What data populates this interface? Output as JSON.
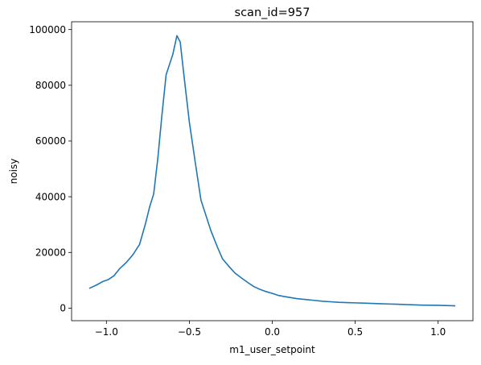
{
  "chart_data": {
    "type": "line",
    "title": "scan_id=957",
    "xlabel": "m1_user_setpoint",
    "ylabel": "noisy",
    "xlim": [
      -1.21,
      1.21
    ],
    "ylim": [
      -4500,
      102800
    ],
    "xticks": [
      -1.0,
      -0.5,
      0.0,
      0.5,
      1.0
    ],
    "xtick_labels": [
      "−1.0",
      "−0.5",
      "0.0",
      "0.5",
      "1.0"
    ],
    "yticks": [
      0,
      20000,
      40000,
      60000,
      80000,
      100000
    ],
    "ytick_labels": [
      "0",
      "20000",
      "40000",
      "60000",
      "80000",
      "100000"
    ],
    "grid": false,
    "line_color": "#1f77b4",
    "series": [
      {
        "name": "noisy",
        "x": [
          -1.1,
          -1.06,
          -1.02,
          -0.99,
          -0.955,
          -0.92,
          -0.88,
          -0.84,
          -0.8,
          -0.765,
          -0.74,
          -0.715,
          -0.69,
          -0.665,
          -0.64,
          -0.6,
          -0.575,
          -0.555,
          -0.53,
          -0.5,
          -0.465,
          -0.43,
          -0.405,
          -0.37,
          -0.33,
          -0.3,
          -0.26,
          -0.225,
          -0.185,
          -0.145,
          -0.11,
          -0.08,
          -0.04,
          0.0,
          0.035,
          0.07,
          0.11,
          0.15,
          0.2,
          0.25,
          0.3,
          0.35,
          0.4,
          0.45,
          0.5,
          0.55,
          0.6,
          0.65,
          0.7,
          0.75,
          0.8,
          0.85,
          0.9,
          0.95,
          1.0,
          1.05,
          1.1
        ],
        "values": [
          7200,
          8300,
          9600,
          10200,
          11600,
          14200,
          16400,
          19200,
          22900,
          30200,
          36200,
          41000,
          53800,
          69500,
          83800,
          91000,
          97800,
          95500,
          82200,
          66800,
          52600,
          38800,
          34200,
          27800,
          21800,
          17700,
          14900,
          12600,
          10800,
          9100,
          7700,
          6900,
          6000,
          5300,
          4600,
          4200,
          3800,
          3400,
          3100,
          2800,
          2500,
          2300,
          2100,
          2000,
          1900,
          1800,
          1700,
          1600,
          1500,
          1400,
          1300,
          1200,
          1100,
          1050,
          1000,
          950,
          850
        ]
      }
    ]
  }
}
